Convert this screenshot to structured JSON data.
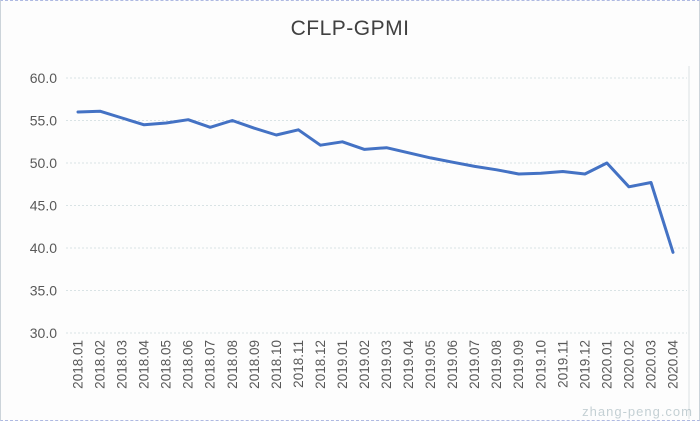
{
  "title": "CFLP-GPMI",
  "watermark": "zhang-peng.com",
  "chart_data": {
    "type": "line",
    "title": "CFLP-GPMI",
    "categories": [
      "2018.01",
      "2018.02",
      "2018.03",
      "2018.04",
      "2018.05",
      "2018.06",
      "2018.07",
      "2018.08",
      "2018.09",
      "2018.10",
      "2018.11",
      "2018.12",
      "2019.01",
      "2019.02",
      "2019.03",
      "2019.04",
      "2019.05",
      "2019.06",
      "2019.07",
      "2019.08",
      "2019.09",
      "2019.10",
      "2019.11",
      "2019.12",
      "2020.01",
      "2020.02",
      "2020.03",
      "2020.04"
    ],
    "values": [
      56.0,
      56.1,
      55.3,
      54.5,
      54.7,
      55.1,
      54.2,
      55.0,
      54.1,
      53.3,
      53.9,
      52.1,
      52.5,
      51.6,
      51.8,
      51.2,
      50.6,
      50.1,
      49.6,
      49.2,
      48.7,
      48.8,
      49.0,
      48.7,
      50.0,
      47.2,
      47.7,
      39.5
    ],
    "xlabel": "",
    "ylabel": "",
    "ylim": [
      30,
      60
    ],
    "y_ticks": [
      30,
      35,
      40,
      45,
      50,
      55,
      60
    ],
    "y_tick_labels": [
      "30.0",
      "35.0",
      "40.0",
      "45.0",
      "50.0",
      "55.0",
      "60.0"
    ],
    "grid": true,
    "gridline_style": "dotted",
    "legend_position": "none",
    "line_color": "#4472c4",
    "gridline_color": "#d9e3e5",
    "axis_label_color": "#595959",
    "title_color": "#404040",
    "background_color": "#fdfdfd"
  }
}
